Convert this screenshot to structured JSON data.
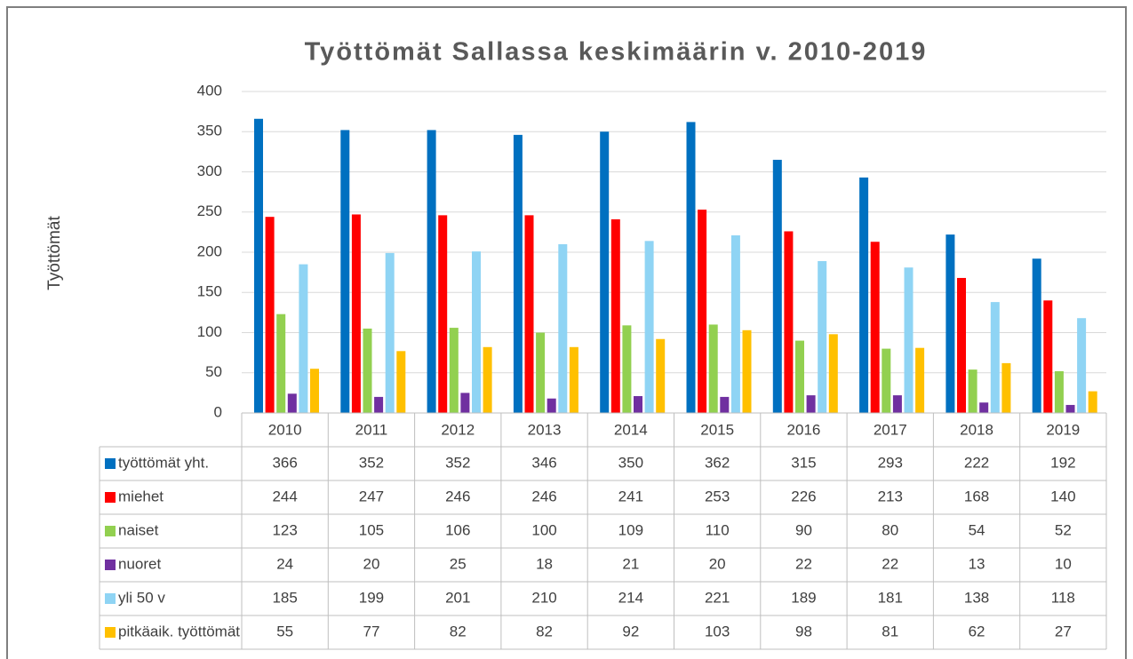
{
  "chart_data": {
    "type": "bar",
    "title": "Työttömät Sallassa keskimäärin v. 2010-2019",
    "y_label": "Työttömät",
    "categories": [
      "2010",
      "2011",
      "2012",
      "2013",
      "2014",
      "2015",
      "2016",
      "2017",
      "2018",
      "2019"
    ],
    "series": [
      {
        "name": "työttömät yht.",
        "color": "#0070c0",
        "values": [
          366,
          352,
          352,
          346,
          350,
          362,
          315,
          293,
          222,
          192
        ]
      },
      {
        "name": "miehet",
        "color": "#ff0000",
        "values": [
          244,
          247,
          246,
          246,
          241,
          253,
          226,
          213,
          168,
          140
        ]
      },
      {
        "name": "naiset",
        "color": "#92d050",
        "values": [
          123,
          105,
          106,
          100,
          109,
          110,
          90,
          80,
          54,
          52
        ]
      },
      {
        "name": "nuoret",
        "color": "#7030a0",
        "values": [
          24,
          20,
          25,
          18,
          21,
          20,
          22,
          22,
          13,
          10
        ]
      },
      {
        "name": "yli 50 v",
        "color": "#8fd4f4",
        "values": [
          185,
          199,
          201,
          210,
          214,
          221,
          189,
          181,
          138,
          118
        ]
      },
      {
        "name": "pitkäaik. työttömät",
        "color": "#ffc000",
        "values": [
          55,
          77,
          82,
          82,
          92,
          103,
          98,
          81,
          62,
          27
        ]
      }
    ],
    "ylim": [
      0,
      400
    ],
    "yticks": [
      0,
      50,
      100,
      150,
      200,
      250,
      300,
      350,
      400
    ],
    "grid": true
  }
}
